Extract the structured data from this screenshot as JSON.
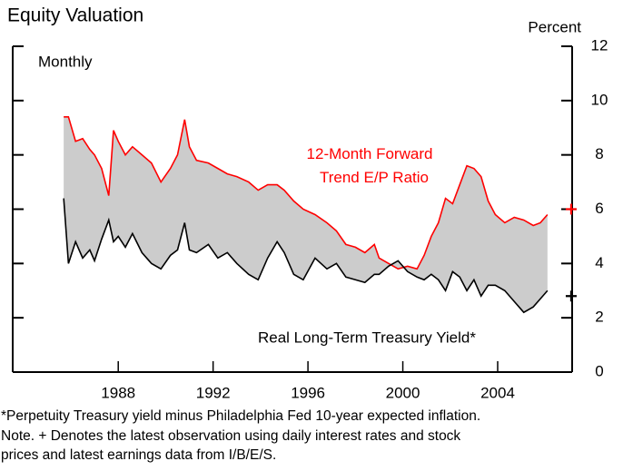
{
  "chart_data": {
    "type": "band-line",
    "title": "Equity Valuation",
    "y_axis_label": "Percent",
    "frequency": "Monthly",
    "xlim": [
      1983.55,
      2007.14
    ],
    "xticks": [
      1988,
      1992,
      1996,
      2000,
      2004
    ],
    "ylim": [
      0,
      12
    ],
    "yticks": [
      0,
      2,
      4,
      6,
      8,
      10,
      12
    ],
    "fill_color": "#cccccc",
    "x": [
      1985.7,
      1985.9,
      1986.2,
      1986.5,
      1986.8,
      1987.0,
      1987.3,
      1987.6,
      1987.8,
      1988.0,
      1988.3,
      1988.6,
      1989.0,
      1989.4,
      1989.8,
      1990.2,
      1990.5,
      1990.8,
      1991.0,
      1991.3,
      1991.8,
      1992.2,
      1992.6,
      1993.0,
      1993.5,
      1993.9,
      1994.3,
      1994.7,
      1995.0,
      1995.4,
      1995.8,
      1996.3,
      1996.8,
      1997.2,
      1997.6,
      1998.0,
      1998.4,
      1998.8,
      1999.0,
      1999.4,
      1999.8,
      2000.2,
      2000.6,
      2000.9,
      2001.2,
      2001.5,
      2001.8,
      2002.1,
      2002.4,
      2002.7,
      2003.0,
      2003.3,
      2003.6,
      2003.9,
      2004.3,
      2004.7,
      2005.1,
      2005.5,
      2005.8,
      2006.1
    ],
    "series": [
      {
        "name": "12-Month Forward Trend E/P Ratio",
        "color": "#ff0000",
        "values": [
          9.4,
          9.4,
          8.5,
          8.6,
          8.2,
          8.0,
          7.5,
          6.5,
          8.9,
          8.5,
          8.0,
          8.3,
          8.0,
          7.7,
          7.0,
          7.5,
          8.0,
          9.3,
          8.3,
          7.8,
          7.7,
          7.5,
          7.3,
          7.2,
          7.0,
          6.7,
          6.9,
          6.9,
          6.7,
          6.3,
          6.0,
          5.8,
          5.5,
          5.2,
          4.7,
          4.6,
          4.4,
          4.7,
          4.2,
          4.0,
          3.8,
          3.9,
          3.8,
          4.3,
          5.0,
          5.5,
          6.4,
          6.2,
          6.9,
          7.6,
          7.5,
          7.2,
          6.3,
          5.8,
          5.5,
          5.7,
          5.6,
          5.4,
          5.5,
          5.8
        ],
        "latest_x": 2007.1,
        "latest_value": 6.0
      },
      {
        "name": "Real Long-Term Treasury Yield*",
        "color": "#000000",
        "values": [
          6.4,
          4.0,
          4.8,
          4.2,
          4.5,
          4.1,
          4.9,
          5.6,
          4.8,
          5.0,
          4.6,
          5.1,
          4.4,
          4.0,
          3.8,
          4.3,
          4.5,
          5.5,
          4.5,
          4.4,
          4.7,
          4.2,
          4.4,
          4.0,
          3.6,
          3.4,
          4.2,
          4.8,
          4.4,
          3.6,
          3.4,
          4.2,
          3.8,
          4.0,
          3.5,
          3.4,
          3.3,
          3.6,
          3.6,
          3.9,
          4.1,
          3.7,
          3.5,
          3.4,
          3.6,
          3.4,
          3.0,
          3.7,
          3.5,
          3.0,
          3.4,
          2.8,
          3.2,
          3.2,
          3.0,
          2.6,
          2.2,
          2.4,
          2.7,
          3.0
        ],
        "latest_x": 2007.1,
        "latest_value": 2.8
      }
    ],
    "footnotes": [
      "*Perpetuity Treasury yield minus Philadelphia Fed 10-year expected inflation.",
      "Note. + Denotes the latest observation using daily interest rates and stock",
      "prices and latest earnings data from I/B/E/S."
    ]
  }
}
